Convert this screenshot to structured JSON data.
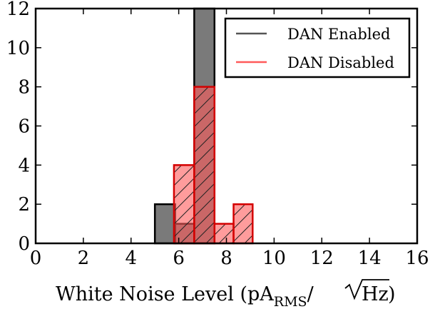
{
  "chart_data": {
    "type": "bar",
    "xlabel": "White Noise Level (pA",
    "xlabel_sub": "RMS",
    "xlabel_suffix": "/",
    "xlabel_radicand": "Hz",
    "xlabel_close": ")",
    "ylabel": "",
    "title": "",
    "xlim": [
      0,
      16
    ],
    "ylim": [
      0,
      12
    ],
    "xticks": [
      0,
      2,
      4,
      6,
      8,
      10,
      12,
      14,
      16
    ],
    "yticks": [
      0,
      2,
      4,
      6,
      8,
      10,
      12
    ],
    "grid": false,
    "legend_position": "top-right",
    "series": [
      {
        "name": "DAN Enabled",
        "color": "#555555",
        "bins": [
          {
            "start": 5.0,
            "end": 5.85,
            "count": 2
          },
          {
            "start": 5.85,
            "end": 6.65,
            "count": 1
          },
          {
            "start": 6.65,
            "end": 7.5,
            "count": 12
          }
        ]
      },
      {
        "name": "DAN Disabled",
        "color": "#ff5a5a",
        "bins": [
          {
            "start": 5.8,
            "end": 6.65,
            "count": 4
          },
          {
            "start": 6.65,
            "end": 7.5,
            "count": 8
          },
          {
            "start": 7.5,
            "end": 8.3,
            "count": 1
          },
          {
            "start": 8.3,
            "end": 9.1,
            "count": 2
          }
        ]
      }
    ]
  }
}
